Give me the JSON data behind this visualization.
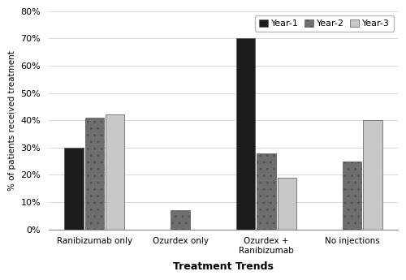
{
  "categories": [
    "Ranibizumab only",
    "Ozurdex only",
    "Ozurdex +\nRanibizumab",
    "No injections"
  ],
  "year1": [
    30,
    0,
    70,
    0
  ],
  "year2": [
    41,
    7,
    28,
    25
  ],
  "year3": [
    42,
    0,
    19,
    40
  ],
  "year1_color": "#1c1c1c",
  "year2_color": "#6e6e6e",
  "year3_color": "#c8c8c8",
  "year1_hatch": "",
  "year2_hatch": "..",
  "year3_hatch": "",
  "ylabel": "% of patients received treatment",
  "xlabel": "Treatment Trends",
  "ylim": [
    0,
    80
  ],
  "yticks": [
    0,
    10,
    20,
    30,
    40,
    50,
    60,
    70,
    80
  ],
  "legend_labels": [
    "Year-1",
    "Year-2",
    "Year-3"
  ],
  "bar_width": 0.22,
  "edgecolor": "#555555",
  "background_color": "#ffffff",
  "grid_color": "#d8d8d8",
  "spine_color": "#888888"
}
